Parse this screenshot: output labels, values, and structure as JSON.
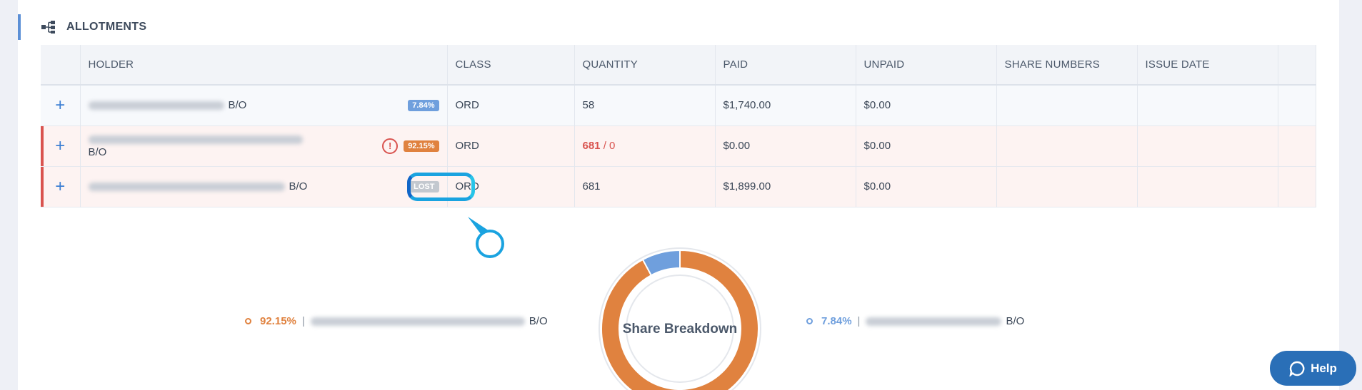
{
  "section": {
    "title": "ALLOTMENTS",
    "icon": "hierarchy-icon"
  },
  "table": {
    "headers": [
      "HOLDER",
      "CLASS",
      "QUANTITY",
      "PAID",
      "UNPAID",
      "SHARE NUMBERS",
      "ISSUE DATE"
    ],
    "rows": [
      {
        "suffix": "B/O",
        "badge": "7.84%",
        "class": "ORD",
        "quantity": "58",
        "quantity_extra": "",
        "paid": "$1,740.00",
        "unpaid": "$0.00",
        "share_numbers": "",
        "issue_date": ""
      },
      {
        "suffix": "B/O",
        "badge": "92.15%",
        "class": "ORD",
        "quantity": "681",
        "quantity_extra": " / 0",
        "paid": "$0.00",
        "unpaid": "$0.00",
        "share_numbers": "",
        "issue_date": ""
      },
      {
        "suffix": "B/O",
        "badge": "LOST",
        "class": "ORD",
        "quantity": "681",
        "quantity_extra": "",
        "paid": "$1,899.00",
        "unpaid": "$0.00",
        "share_numbers": "",
        "issue_date": ""
      }
    ]
  },
  "breakdown": {
    "title": "Share Breakdown",
    "left": {
      "pct": "92.15%",
      "sep": "|",
      "suffix": "B/O"
    },
    "right": {
      "pct": "7.84%",
      "sep": "|",
      "suffix": "B/O"
    },
    "slices": [
      {
        "label": "92.15%",
        "value": 92.15,
        "color": "#e0823f"
      },
      {
        "label": "7.84%",
        "value": 7.84,
        "color": "#6f9fdd"
      }
    ]
  },
  "help": {
    "label": "Help"
  },
  "colors": {
    "accent": "#3c7fd3",
    "warn": "#d9534f",
    "orange": "#e0823f",
    "blue": "#6f9fdd"
  }
}
